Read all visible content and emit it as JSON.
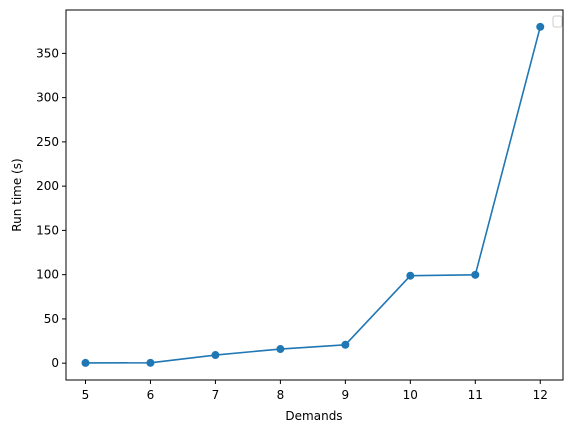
{
  "chart_data": {
    "type": "line",
    "xlabel": "Demands",
    "ylabel": "Run time (s)",
    "x": [
      5,
      6,
      7,
      8,
      9,
      10,
      11,
      12
    ],
    "series": [
      {
        "values": [
          0.3,
          0.4,
          9.2,
          16.0,
          20.8,
          98.8,
          99.8,
          380.0
        ],
        "color": "#1f77b4",
        "marker": "circle"
      }
    ],
    "xlim": [
      4.7,
      12.35
    ],
    "ylim": [
      -19,
      399
    ],
    "xticks": [
      5,
      6,
      7,
      8,
      9,
      10,
      11,
      12
    ],
    "yticks": [
      0,
      50,
      100,
      150,
      200,
      250,
      300,
      350
    ],
    "grid": false,
    "legend": {
      "placement": "top-right",
      "entries": []
    }
  }
}
